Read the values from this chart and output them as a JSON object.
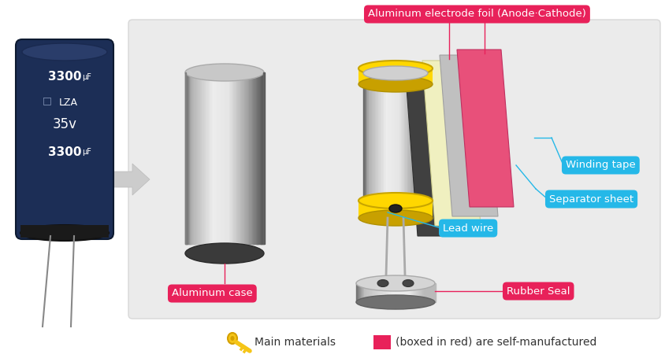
{
  "bg_color": "#ffffff",
  "diagram_bg": "#ebebeb",
  "label_cyan": "#25b8e8",
  "label_pink": "#e8215a",
  "text_white": "#ffffff",
  "labels": {
    "anode_cathode": "Aluminum electrode foil (Anode·Cathode)",
    "winding_tape": "Winding tape",
    "separator": "Separator sheet",
    "lead_wire": "Lead wire",
    "aluminum_case": "Aluminum case",
    "rubber_seal": "Rubber Seal"
  },
  "legend_text1": "Main materials",
  "legend_text2": "(boxed in red) are self-manufactured"
}
